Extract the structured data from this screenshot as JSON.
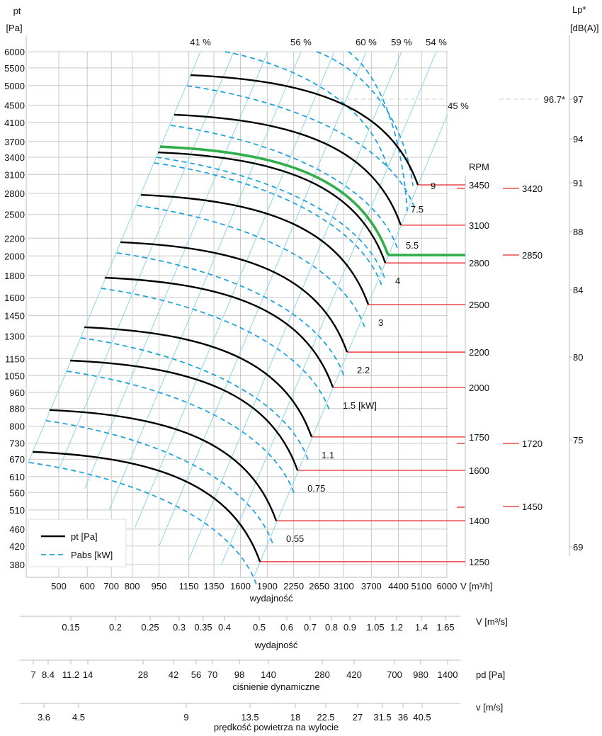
{
  "chart_data": {
    "type": "line",
    "title": "",
    "colors": {
      "fan_curve": "#000000",
      "highlight": "#2fae4a",
      "power": "#1ea4dc",
      "efficiency": "#8fd3ea",
      "rpm_line": "#e8262a",
      "grid": "#c8c8c8"
    },
    "y_axis": {
      "label_top": "pt",
      "label_unit": "[Pa]",
      "scale": "log",
      "range": [
        380,
        6000
      ],
      "ticks": [
        6000,
        5500,
        5000,
        4500,
        4100,
        3700,
        3400,
        3100,
        2800,
        2500,
        2200,
        2000,
        1800,
        1600,
        1450,
        1300,
        1150,
        1050,
        960,
        880,
        800,
        730,
        670,
        610,
        560,
        510,
        460,
        420,
        380
      ]
    },
    "x_axis": {
      "unit": "V [m³/h]",
      "label": "wydajność",
      "scale": "log",
      "range": [
        500,
        6000
      ],
      "ticks": [
        500,
        600,
        700,
        800,
        950,
        1150,
        1350,
        1600,
        1900,
        2250,
        2650,
        3100,
        3700,
        4400,
        5100,
        6000
      ]
    },
    "rpm_axis": {
      "label": "RPM"
    },
    "fan_curves": [
      {
        "rpm": "1250",
        "start": [
          423,
          697
        ],
        "end": [
          1813,
          386
        ],
        "power_kw": ""
      },
      {
        "rpm": "1400",
        "start": [
          471,
          873
        ],
        "end": [
          2012,
          481
        ],
        "power_kw": "0.55"
      },
      {
        "rpm": "1600",
        "start": [
          538,
          1139
        ],
        "end": [
          2306,
          631
        ],
        "power_kw": "0.75"
      },
      {
        "rpm": "1750",
        "start": [
          589,
          1363
        ],
        "end": [
          2524,
          755
        ],
        "power_kw": "1.1"
      },
      {
        "rpm": "2000",
        "start": [
          671,
          1779
        ],
        "end": [
          2892,
          986
        ],
        "power_kw": "1.5",
        "power_unit": "[kW]"
      },
      {
        "rpm": "2200",
        "start": [
          742,
          2153
        ],
        "end": [
          3167,
          1192
        ],
        "power_kw": "2.2"
      },
      {
        "rpm": "2500",
        "start": [
          846,
          2778
        ],
        "end": [
          3628,
          1539
        ],
        "power_kw": "3"
      },
      {
        "rpm": "2800",
        "start": [
          943,
          3492
        ],
        "end": [
          4046,
          1926
        ],
        "power_kw": "4"
      },
      {
        "rpm": "3100",
        "start": [
          1047,
          4275
        ],
        "end": [
          4468,
          2360
        ],
        "power_kw": "7.5"
      },
      {
        "rpm": "3450",
        "start": [
          1162,
          5290
        ],
        "end": [
          4983,
          2931
        ],
        "power_kw": "9"
      }
    ],
    "highlighted_curve": {
      "rpm": "2850",
      "start": [
        956,
        3600
      ],
      "end": [
        4120,
        2009
      ],
      "power_kw": "5.5"
    },
    "secondary_rpm": [
      "3420",
      "2850",
      "1720",
      "1450"
    ],
    "efficiency_lines": [
      "41 %",
      "56 %",
      "60 %",
      "59 %",
      "54 %",
      "45 %"
    ],
    "lp_axis": {
      "label_top": "Lp*",
      "label_unit": "[dB(A)]",
      "ticks": [
        "97",
        "94",
        "91",
        "88",
        "84",
        "80",
        "75",
        "69"
      ],
      "marker": "96.7*"
    },
    "legend": [
      {
        "label": "pt [Pa]",
        "style": "solid"
      },
      {
        "label": "Pabs [kW]",
        "style": "dashed"
      }
    ],
    "secondary_axes": [
      {
        "unit": "V  [m³/s]",
        "label": "wydajność",
        "ticks": [
          "0.15",
          "0.2",
          "0.25",
          "0.3",
          "0.35",
          "0.4",
          "0.5",
          "0.6",
          "0.7",
          "0.8",
          "0.9",
          "1.05",
          "1.2",
          "1.4",
          "1.65"
        ]
      },
      {
        "unit": "pd  [Pa]",
        "label": "ciśnienie dynamiczne",
        "ticks": [
          "7",
          "8.4",
          "11.2",
          "14",
          "28",
          "42",
          "56",
          "70",
          "98",
          "140",
          "280",
          "420",
          "700",
          "980",
          "1400"
        ]
      },
      {
        "unit": "v  [m/s]",
        "label": "prędkość powietrza na wylocie",
        "ticks": [
          "3.6",
          "4.5",
          "9",
          "13.5",
          "18",
          "22.5",
          "27",
          "31.5",
          "36",
          "40.5"
        ]
      }
    ]
  }
}
